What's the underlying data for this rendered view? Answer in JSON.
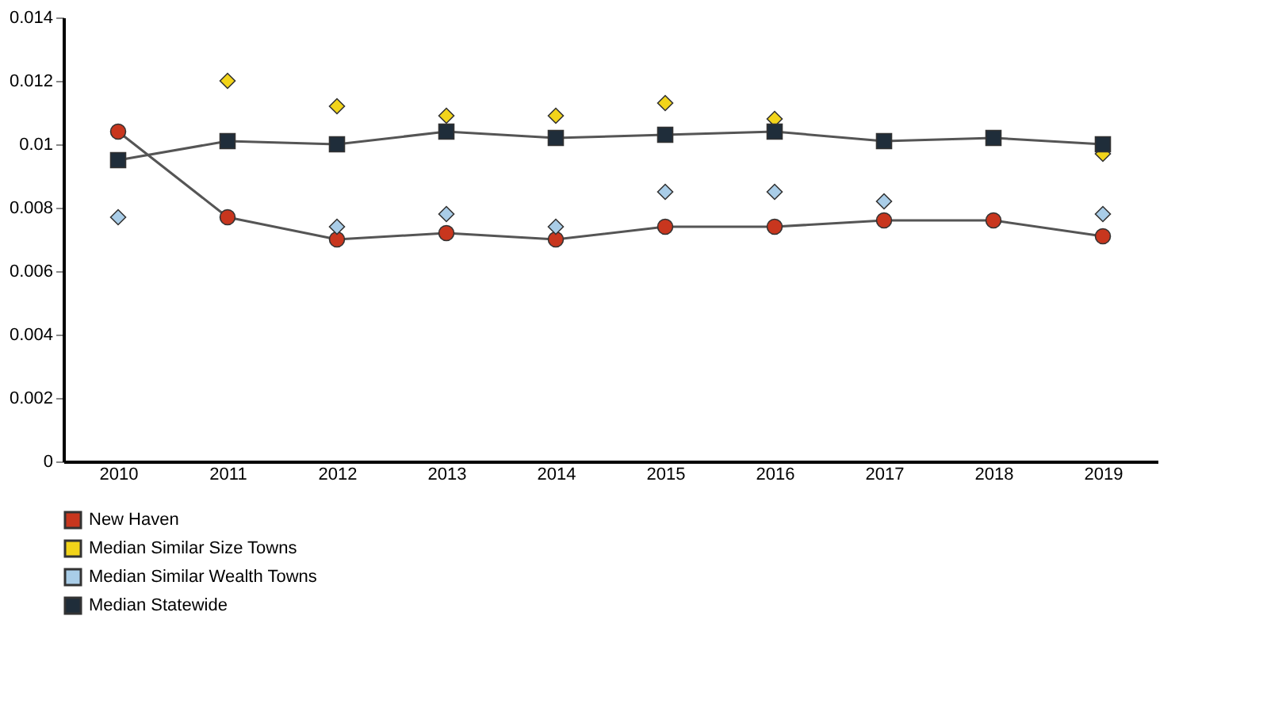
{
  "chart_data": {
    "type": "line",
    "categories": [
      "2010",
      "2011",
      "2012",
      "2013",
      "2014",
      "2015",
      "2016",
      "2017",
      "2018",
      "2019"
    ],
    "series": [
      {
        "name": "New Haven",
        "color": "#c8361e",
        "type": "line",
        "marker": "circle",
        "values": [
          0.0104,
          0.0077,
          0.007,
          0.0072,
          0.007,
          0.0074,
          0.0074,
          0.0076,
          0.0076,
          0.0071
        ]
      },
      {
        "name": "Median Similar Size Towns",
        "color": "#f2d41a",
        "type": "scatter",
        "marker": "diamond",
        "values": [
          null,
          0.012,
          0.0112,
          0.0109,
          0.0109,
          0.0113,
          0.0108,
          null,
          null,
          0.0097
        ]
      },
      {
        "name": "Median Similar Wealth Towns",
        "color": "#a9cde8",
        "type": "scatter",
        "marker": "diamond",
        "values": [
          0.0077,
          null,
          0.0074,
          0.0078,
          0.0074,
          0.0085,
          0.0085,
          0.0082,
          null,
          0.0078
        ]
      },
      {
        "name": "Median Statewide",
        "color": "#1f2d3a",
        "type": "line",
        "marker": "square",
        "values": [
          0.0095,
          0.0101,
          0.01,
          0.0104,
          0.0102,
          0.0103,
          0.0104,
          0.0101,
          0.0102,
          0.01
        ]
      }
    ],
    "ylim": [
      0,
      0.014
    ],
    "yticks": [
      0,
      0.002,
      0.004,
      0.006,
      0.008,
      0.01,
      0.012,
      0.014
    ],
    "grid": false,
    "legend": "bottom"
  }
}
